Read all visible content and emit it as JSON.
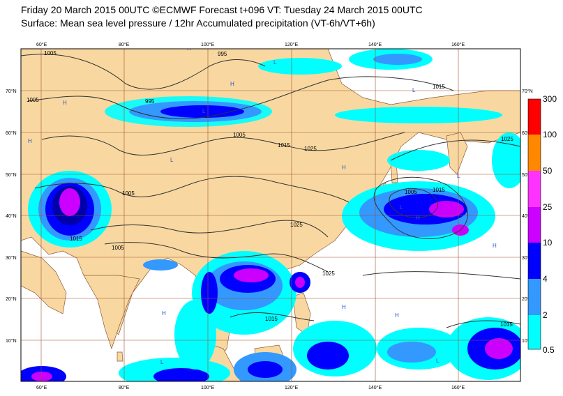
{
  "header": {
    "line1": "Friday 20 March 2015 00UTC ©ECMWF Forecast t+096 VT: Tuesday 24 March 2015 00UTC",
    "line2": "Surface: Mean sea level pressure / 12hr Accumulated precipitation (VT-6h/VT+6h)"
  },
  "axes": {
    "lon_labels": [
      "60°E",
      "80°E",
      "100°E",
      "120°E",
      "140°E",
      "160°E"
    ],
    "lat_labels": [
      "10°N",
      "20°N",
      "30°N",
      "40°N",
      "50°N",
      "60°N",
      "70°N"
    ]
  },
  "legend": {
    "levels": [
      "0.5",
      "2",
      "4",
      "10",
      "25",
      "50",
      "100",
      "300"
    ],
    "colors": [
      "#00ffff",
      "#3399ff",
      "#0000ff",
      "#0000aa",
      "#cc00ff",
      "#ff33ff",
      "#ff8800",
      "#ff0000"
    ]
  },
  "isobars": [
    "1005",
    "995",
    "995",
    "1005",
    "1005",
    "1015",
    "1025",
    "1025",
    "1005",
    "1005",
    "1015",
    "1025",
    "1015",
    "1005",
    "1015",
    "1015",
    "1015",
    "1025"
  ],
  "pressure_centres": [
    "H",
    "H",
    "H",
    "H",
    "H",
    "H",
    "H",
    "H",
    "H",
    "H",
    "L",
    "L",
    "L",
    "L",
    "L",
    "L",
    "L",
    "L"
  ],
  "colors": {
    "land": "#f8d8a0",
    "sea": "#ffffff",
    "grid": "#a05030",
    "isobar": "#333333"
  }
}
